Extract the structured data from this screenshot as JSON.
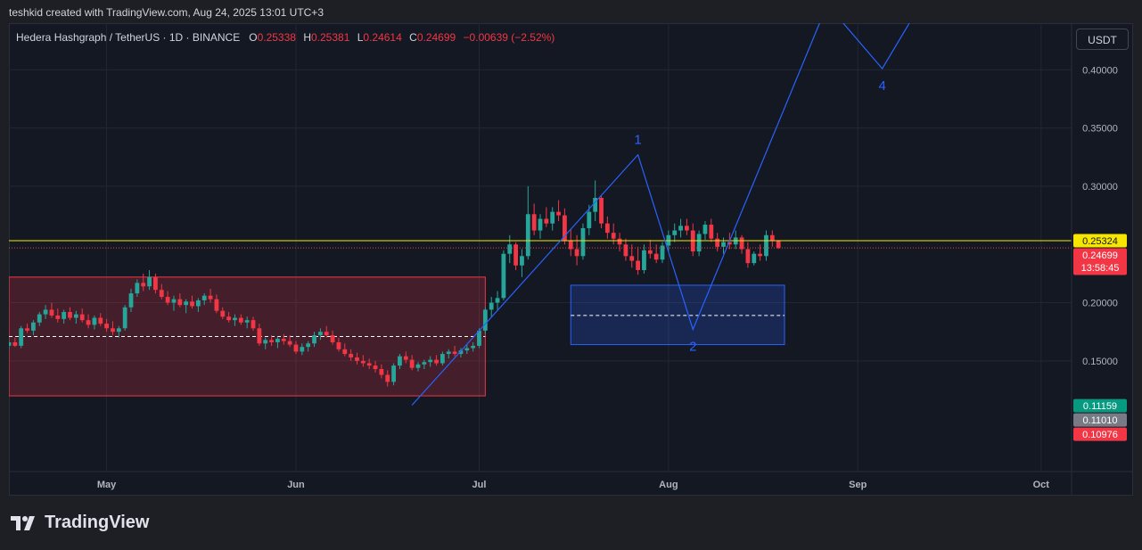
{
  "header": {
    "attribution": "teshkid created with TradingView.com, Aug 24, 2025 13:01 UTC+3"
  },
  "legend": {
    "symbol": "Hedera Hashgraph / TetherUS · 1D · BINANCE",
    "o_label": "O",
    "o": "0.25338",
    "h_label": "H",
    "h": "0.25381",
    "l_label": "L",
    "l": "0.24614",
    "c_label": "C",
    "c": "0.24699",
    "change": "−0.00639 (−2.52%)"
  },
  "currency_button": "USDT",
  "brand": "TradingView",
  "colors": {
    "up": "#26a69a",
    "down": "#f23645",
    "pattern": "#2962ff",
    "resistance": "#f7e600"
  },
  "chart_data": {
    "type": "candlestick",
    "x_range": [
      "2025-04-15",
      "2025-10-06"
    ],
    "y_range": [
      0.055,
      0.44
    ],
    "yticks": [
      {
        "value": 0.4,
        "label": "0.40000"
      },
      {
        "value": 0.35,
        "label": "0.35000"
      },
      {
        "value": 0.3,
        "label": "0.30000"
      },
      {
        "value": 0.2,
        "label": "0.20000"
      },
      {
        "value": 0.15,
        "label": "0.15000"
      }
    ],
    "xticks": [
      {
        "date": "2025-05-01",
        "label": "May"
      },
      {
        "date": "2025-06-01",
        "label": "Jun"
      },
      {
        "date": "2025-07-01",
        "label": "Jul"
      },
      {
        "date": "2025-08-01",
        "label": "Aug"
      },
      {
        "date": "2025-09-01",
        "label": "Sep"
      },
      {
        "date": "2025-10-01",
        "label": "Oct"
      }
    ],
    "candle_start": "2025-04-15",
    "candles": [
      [
        0.163,
        0.168,
        0.16,
        0.166
      ],
      [
        0.166,
        0.17,
        0.162,
        0.163
      ],
      [
        0.163,
        0.18,
        0.161,
        0.178
      ],
      [
        0.178,
        0.182,
        0.174,
        0.176
      ],
      [
        0.176,
        0.185,
        0.172,
        0.183
      ],
      [
        0.183,
        0.192,
        0.18,
        0.19
      ],
      [
        0.19,
        0.198,
        0.186,
        0.194
      ],
      [
        0.194,
        0.2,
        0.187,
        0.189
      ],
      [
        0.189,
        0.195,
        0.183,
        0.186
      ],
      [
        0.186,
        0.194,
        0.182,
        0.192
      ],
      [
        0.192,
        0.196,
        0.185,
        0.187
      ],
      [
        0.187,
        0.193,
        0.182,
        0.19
      ],
      [
        0.19,
        0.195,
        0.183,
        0.185
      ],
      [
        0.185,
        0.19,
        0.178,
        0.181
      ],
      [
        0.181,
        0.189,
        0.177,
        0.187
      ],
      [
        0.187,
        0.191,
        0.18,
        0.182
      ],
      [
        0.182,
        0.186,
        0.175,
        0.178
      ],
      [
        0.178,
        0.184,
        0.172,
        0.175
      ],
      [
        0.175,
        0.18,
        0.17,
        0.178
      ],
      [
        0.178,
        0.198,
        0.176,
        0.196
      ],
      [
        0.196,
        0.212,
        0.192,
        0.208
      ],
      [
        0.208,
        0.22,
        0.205,
        0.217
      ],
      [
        0.217,
        0.225,
        0.21,
        0.214
      ],
      [
        0.214,
        0.228,
        0.211,
        0.222
      ],
      [
        0.222,
        0.225,
        0.208,
        0.211
      ],
      [
        0.211,
        0.216,
        0.203,
        0.205
      ],
      [
        0.205,
        0.21,
        0.198,
        0.2
      ],
      [
        0.2,
        0.206,
        0.193,
        0.203
      ],
      [
        0.203,
        0.208,
        0.196,
        0.198
      ],
      [
        0.198,
        0.203,
        0.191,
        0.201
      ],
      [
        0.201,
        0.206,
        0.195,
        0.197
      ],
      [
        0.197,
        0.204,
        0.192,
        0.202
      ],
      [
        0.202,
        0.208,
        0.198,
        0.206
      ],
      [
        0.206,
        0.212,
        0.2,
        0.203
      ],
      [
        0.203,
        0.207,
        0.191,
        0.193
      ],
      [
        0.193,
        0.196,
        0.186,
        0.188
      ],
      [
        0.188,
        0.192,
        0.183,
        0.185
      ],
      [
        0.185,
        0.19,
        0.18,
        0.187
      ],
      [
        0.187,
        0.19,
        0.181,
        0.183
      ],
      [
        0.183,
        0.188,
        0.178,
        0.185
      ],
      [
        0.185,
        0.188,
        0.176,
        0.178
      ],
      [
        0.178,
        0.182,
        0.163,
        0.165
      ],
      [
        0.165,
        0.17,
        0.16,
        0.168
      ],
      [
        0.168,
        0.172,
        0.163,
        0.166
      ],
      [
        0.166,
        0.171,
        0.161,
        0.169
      ],
      [
        0.169,
        0.173,
        0.164,
        0.167
      ],
      [
        0.167,
        0.172,
        0.162,
        0.164
      ],
      [
        0.164,
        0.167,
        0.156,
        0.158
      ],
      [
        0.158,
        0.165,
        0.155,
        0.162
      ],
      [
        0.162,
        0.167,
        0.158,
        0.165
      ],
      [
        0.165,
        0.175,
        0.162,
        0.172
      ],
      [
        0.172,
        0.178,
        0.168,
        0.175
      ],
      [
        0.175,
        0.18,
        0.17,
        0.172
      ],
      [
        0.172,
        0.176,
        0.164,
        0.166
      ],
      [
        0.166,
        0.17,
        0.158,
        0.16
      ],
      [
        0.16,
        0.165,
        0.154,
        0.156
      ],
      [
        0.156,
        0.16,
        0.15,
        0.153
      ],
      [
        0.153,
        0.157,
        0.147,
        0.15
      ],
      [
        0.15,
        0.155,
        0.145,
        0.148
      ],
      [
        0.148,
        0.152,
        0.143,
        0.146
      ],
      [
        0.146,
        0.15,
        0.14,
        0.143
      ],
      [
        0.143,
        0.147,
        0.135,
        0.138
      ],
      [
        0.138,
        0.142,
        0.128,
        0.132
      ],
      [
        0.132,
        0.148,
        0.129,
        0.146
      ],
      [
        0.146,
        0.156,
        0.143,
        0.154
      ],
      [
        0.154,
        0.158,
        0.148,
        0.151
      ],
      [
        0.151,
        0.155,
        0.142,
        0.144
      ],
      [
        0.144,
        0.149,
        0.141,
        0.147
      ],
      [
        0.147,
        0.151,
        0.143,
        0.149
      ],
      [
        0.149,
        0.154,
        0.145,
        0.151
      ],
      [
        0.151,
        0.155,
        0.146,
        0.148
      ],
      [
        0.148,
        0.158,
        0.146,
        0.156
      ],
      [
        0.156,
        0.16,
        0.152,
        0.158
      ],
      [
        0.158,
        0.163,
        0.154,
        0.156
      ],
      [
        0.156,
        0.161,
        0.153,
        0.159
      ],
      [
        0.159,
        0.164,
        0.156,
        0.161
      ],
      [
        0.161,
        0.166,
        0.158,
        0.163
      ],
      [
        0.163,
        0.178,
        0.161,
        0.176
      ],
      [
        0.176,
        0.196,
        0.173,
        0.194
      ],
      [
        0.194,
        0.205,
        0.188,
        0.2
      ],
      [
        0.2,
        0.21,
        0.194,
        0.204
      ],
      [
        0.204,
        0.245,
        0.202,
        0.242
      ],
      [
        0.242,
        0.258,
        0.234,
        0.25
      ],
      [
        0.25,
        0.252,
        0.228,
        0.232
      ],
      [
        0.232,
        0.246,
        0.222,
        0.24
      ],
      [
        0.24,
        0.3,
        0.237,
        0.276
      ],
      [
        0.276,
        0.285,
        0.258,
        0.262
      ],
      [
        0.262,
        0.276,
        0.255,
        0.272
      ],
      [
        0.272,
        0.282,
        0.265,
        0.268
      ],
      [
        0.268,
        0.282,
        0.262,
        0.278
      ],
      [
        0.278,
        0.288,
        0.27,
        0.275
      ],
      [
        0.275,
        0.281,
        0.25,
        0.253
      ],
      [
        0.253,
        0.263,
        0.24,
        0.246
      ],
      [
        0.246,
        0.258,
        0.232,
        0.24
      ],
      [
        0.24,
        0.268,
        0.237,
        0.264
      ],
      [
        0.264,
        0.284,
        0.258,
        0.278
      ],
      [
        0.278,
        0.305,
        0.27,
        0.29
      ],
      [
        0.29,
        0.292,
        0.264,
        0.268
      ],
      [
        0.268,
        0.274,
        0.255,
        0.26
      ],
      [
        0.26,
        0.268,
        0.25,
        0.255
      ],
      [
        0.255,
        0.26,
        0.244,
        0.25
      ],
      [
        0.25,
        0.255,
        0.236,
        0.24
      ],
      [
        0.24,
        0.25,
        0.23,
        0.236
      ],
      [
        0.236,
        0.248,
        0.224,
        0.228
      ],
      [
        0.228,
        0.25,
        0.225,
        0.245
      ],
      [
        0.245,
        0.254,
        0.238,
        0.242
      ],
      [
        0.242,
        0.25,
        0.234,
        0.237
      ],
      [
        0.237,
        0.252,
        0.234,
        0.249
      ],
      [
        0.249,
        0.262,
        0.244,
        0.258
      ],
      [
        0.258,
        0.268,
        0.252,
        0.262
      ],
      [
        0.262,
        0.272,
        0.256,
        0.266
      ],
      [
        0.266,
        0.272,
        0.258,
        0.262
      ],
      [
        0.262,
        0.268,
        0.24,
        0.244
      ],
      [
        0.244,
        0.262,
        0.24,
        0.259
      ],
      [
        0.259,
        0.27,
        0.254,
        0.267
      ],
      [
        0.267,
        0.272,
        0.252,
        0.255
      ],
      [
        0.255,
        0.26,
        0.244,
        0.248
      ],
      [
        0.248,
        0.256,
        0.242,
        0.252
      ],
      [
        0.252,
        0.26,
        0.246,
        0.25
      ],
      [
        0.25,
        0.262,
        0.246,
        0.256
      ],
      [
        0.256,
        0.258,
        0.242,
        0.246
      ],
      [
        0.246,
        0.252,
        0.23,
        0.234
      ],
      [
        0.234,
        0.244,
        0.232,
        0.242
      ],
      [
        0.242,
        0.25,
        0.236,
        0.24
      ],
      [
        0.24,
        0.262,
        0.236,
        0.258
      ],
      [
        0.258,
        0.262,
        0.248,
        0.253
      ],
      [
        0.25338,
        0.25381,
        0.24614,
        0.24699
      ]
    ],
    "zones": [
      {
        "name": "support-zone",
        "color": "#f23645",
        "from": "2025-04-15",
        "to": "2025-07-02",
        "low": 0.12,
        "high": 0.222,
        "mid": 0.171
      },
      {
        "name": "target-zone",
        "color": "#2962ff",
        "from": "2025-07-16",
        "to": "2025-08-20",
        "low": 0.164,
        "high": 0.215,
        "mid": 0.189
      }
    ],
    "wave_path": [
      {
        "date": "2025-06-20",
        "value": 0.112
      },
      {
        "date": "2025-07-27",
        "value": 0.327,
        "label": "1"
      },
      {
        "date": "2025-08-05",
        "value": 0.177,
        "label": "2"
      },
      {
        "date": "2025-08-27",
        "value": 0.456
      },
      {
        "date": "2025-09-05",
        "value": 0.401,
        "label": "4"
      },
      {
        "date": "2025-09-10",
        "value": 0.445
      }
    ],
    "resistance_level": 0.25324,
    "price_badges": [
      {
        "value": 0.25324,
        "label": "0.25324",
        "bg": "#f7e600",
        "fg": "#131722"
      },
      {
        "value": 0.24699,
        "label": "0.24699",
        "sub": "13:58:45",
        "bg": "#f23645",
        "fg": "#ffffff"
      },
      {
        "value": 0.11159,
        "label": "0.11159",
        "bg": "#089981",
        "fg": "#ffffff"
      },
      {
        "value": 0.1101,
        "label": "0.11010",
        "bg": "#787b86",
        "fg": "#ffffff"
      },
      {
        "value": 0.10976,
        "label": "0.10976",
        "bg": "#f23645",
        "fg": "#ffffff"
      }
    ]
  }
}
